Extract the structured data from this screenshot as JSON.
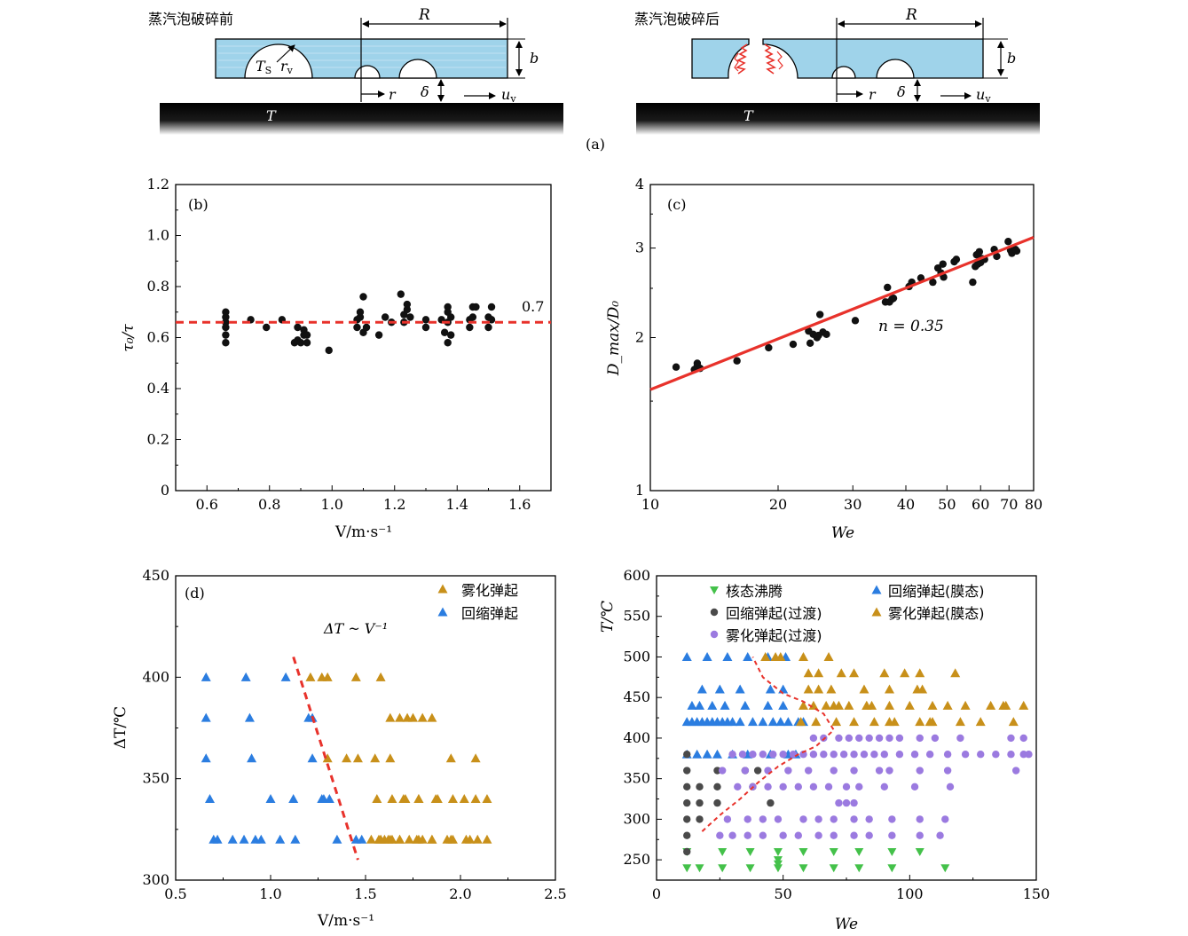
{
  "colors": {
    "water": "#9fd3ea",
    "edge": "#000000",
    "red": "#e8322b",
    "black": "#111111",
    "blue": "#2b7de0",
    "gold": "#c8901a",
    "green": "#44c14a",
    "gray": "#4a4a4a",
    "purple": "#9b7ae0"
  },
  "panel_a": {
    "label": "(a)",
    "left": {
      "title": "蒸汽泡破碎前",
      "R": "R",
      "b": "b",
      "Ts": "T",
      "Ts_sub": "S",
      "rv": "r",
      "rv_sub": "v",
      "r": "r",
      "delta": "δ",
      "uv": "u",
      "uv_sub": "v",
      "T": "T"
    },
    "right": {
      "title": "蒸汽泡破碎后",
      "R": "R",
      "b": "b",
      "r": "r",
      "delta": "δ",
      "uv": "u",
      "uv_sub": "v",
      "T": "T"
    }
  },
  "chart_data": [
    {
      "id": "b",
      "type": "scatter",
      "panel_label": "(b)",
      "xlabel": "V/m·s⁻¹",
      "ylabel": "τ₀/τ",
      "xlim": [
        0.5,
        1.7
      ],
      "ylim": [
        0,
        1.2
      ],
      "xticks": [
        0.6,
        0.8,
        1.0,
        1.2,
        1.4,
        1.6
      ],
      "yticks": [
        0,
        0.2,
        0.4,
        0.6,
        0.8,
        1.0,
        1.2
      ],
      "reference_line": {
        "y": 0.66,
        "label": "0.7",
        "style": "dashed-red"
      },
      "series": [
        {
          "name": "data",
          "color": "#111111",
          "marker": "circle",
          "x": [
            0.66,
            0.66,
            0.66,
            0.66,
            0.66,
            0.66,
            0.74,
            0.79,
            0.84,
            0.88,
            0.89,
            0.89,
            0.9,
            0.91,
            0.91,
            0.92,
            0.92,
            0.99,
            1.08,
            1.08,
            1.09,
            1.09,
            1.1,
            1.1,
            1.11,
            1.15,
            1.17,
            1.19,
            1.22,
            1.23,
            1.23,
            1.24,
            1.24,
            1.25,
            1.3,
            1.3,
            1.35,
            1.36,
            1.37,
            1.37,
            1.37,
            1.37,
            1.38,
            1.38,
            1.44,
            1.44,
            1.45,
            1.45,
            1.46,
            1.5,
            1.5,
            1.51,
            1.51
          ],
          "y": [
            0.58,
            0.61,
            0.64,
            0.66,
            0.68,
            0.7,
            0.67,
            0.64,
            0.67,
            0.58,
            0.59,
            0.64,
            0.58,
            0.61,
            0.63,
            0.58,
            0.61,
            0.55,
            0.64,
            0.67,
            0.68,
            0.7,
            0.62,
            0.76,
            0.64,
            0.61,
            0.68,
            0.66,
            0.77,
            0.66,
            0.69,
            0.71,
            0.73,
            0.68,
            0.64,
            0.67,
            0.67,
            0.62,
            0.58,
            0.66,
            0.7,
            0.72,
            0.68,
            0.61,
            0.64,
            0.67,
            0.68,
            0.72,
            0.72,
            0.64,
            0.68,
            0.67,
            0.72
          ]
        }
      ]
    },
    {
      "id": "c",
      "type": "scatter",
      "panel_label": "(c)",
      "scale": "log-log",
      "xlabel": "We",
      "ylabel": "D_max/D₀",
      "xlim": [
        10,
        80
      ],
      "ylim": [
        1,
        4
      ],
      "xticks": [
        10,
        20,
        30,
        40,
        50,
        60,
        70,
        80
      ],
      "yticks": [
        1,
        2,
        3,
        4
      ],
      "fit": {
        "label": "n = 0.35",
        "n": 0.35,
        "x_range": [
          10,
          80
        ],
        "y_range": [
          1.58,
          3.15
        ],
        "style": "solid-red"
      },
      "series": [
        {
          "name": "data",
          "color": "#111111",
          "marker": "circle",
          "x": [
            11.5,
            12.7,
            12.9,
            12.9,
            13.1,
            16.0,
            19.0,
            21.7,
            23.6,
            23.8,
            24.2,
            24.7,
            24.9,
            25.1,
            25.5,
            26.0,
            30.4,
            35.8,
            36.2,
            36.6,
            37.1,
            37.4,
            40.7,
            41.3,
            43.4,
            46.3,
            47.6,
            48.4,
            48.9,
            49.1,
            52.0,
            52.6,
            57.5,
            58.3,
            58.7,
            59.1,
            59.6,
            60.0,
            60.4,
            61.3,
            64.6,
            65.5,
            69.7,
            70.6,
            71.1,
            72.5,
            73.0
          ],
          "y": [
            1.75,
            1.73,
            1.78,
            1.76,
            1.74,
            1.8,
            1.91,
            1.94,
            2.06,
            1.95,
            2.03,
            2.0,
            2.02,
            2.22,
            2.05,
            2.03,
            2.16,
            2.35,
            2.51,
            2.35,
            2.38,
            2.39,
            2.52,
            2.57,
            2.62,
            2.57,
            2.74,
            2.68,
            2.79,
            2.63,
            2.82,
            2.85,
            2.57,
            2.76,
            2.91,
            2.79,
            2.95,
            2.81,
            2.86,
            2.85,
            2.98,
            2.89,
            3.09,
            2.97,
            2.93,
            2.98,
            2.96
          ]
        }
      ]
    },
    {
      "id": "d",
      "type": "scatter",
      "panel_label": "(d)",
      "xlabel": "V/m·s⁻¹",
      "ylabel": "ΔT/℃",
      "xlim": [
        0.5,
        2.5
      ],
      "ylim": [
        300,
        450
      ],
      "xticks": [
        0.5,
        1.0,
        1.5,
        2.0,
        2.5
      ],
      "yticks": [
        300,
        350,
        400,
        450
      ],
      "annotation": "ΔT ~ V⁻¹",
      "trend": {
        "x": [
          1.12,
          1.46
        ],
        "y": [
          410,
          310
        ],
        "style": "dashed-red"
      },
      "series": [
        {
          "name": "雾化弹起",
          "color": "#c8901a",
          "marker": "triangle",
          "x": [
            1.21,
            1.27,
            1.3,
            1.45,
            1.58,
            1.63,
            1.68,
            1.72,
            1.75,
            1.8,
            1.85,
            1.95,
            2.08,
            1.3,
            1.4,
            1.46,
            1.55,
            1.63,
            1.7,
            1.78,
            1.87,
            1.56,
            1.64,
            1.71,
            1.78,
            1.88,
            1.96,
            2.02,
            2.08,
            2.14,
            1.6,
            1.64,
            1.77,
            1.85,
            1.96,
            2.03,
            2.09,
            1.53,
            1.58,
            1.63,
            1.68,
            1.73,
            1.78,
            1.85,
            1.93,
            2.05,
            2.14,
            1.68,
            1.8,
            1.95,
            1.57,
            1.58,
            1.62
          ],
          "y": [
            400,
            400,
            400,
            400,
            400,
            380,
            380,
            380,
            380,
            380,
            380,
            360,
            360,
            360,
            360,
            360,
            360,
            360,
            340,
            340,
            340,
            340,
            340,
            340,
            340,
            340,
            340,
            340,
            340,
            340,
            320,
            320,
            320,
            320,
            320,
            320,
            320,
            320,
            320,
            320,
            320,
            320,
            320,
            320,
            320,
            320,
            320,
            320,
            320,
            320,
            320,
            320,
            320
          ]
        },
        {
          "name": "回缩弹起",
          "color": "#2b7de0",
          "marker": "triangle",
          "x": [
            0.66,
            0.66,
            0.66,
            0.68,
            0.7,
            0.72,
            0.8,
            0.86,
            0.92,
            0.95,
            0.87,
            0.89,
            0.9,
            1.0,
            1.05,
            1.12,
            1.22,
            1.22,
            1.28,
            1.31,
            1.35,
            1.45,
            1.48,
            1.08,
            1.13,
            1.2,
            1.27
          ],
          "y": [
            400,
            380,
            360,
            340,
            320,
            320,
            320,
            320,
            320,
            320,
            400,
            380,
            360,
            340,
            320,
            340,
            380,
            360,
            340,
            340,
            320,
            320,
            320,
            400,
            320,
            380,
            340
          ]
        }
      ]
    },
    {
      "id": "e",
      "type": "scatter",
      "panel_label": "",
      "xlabel": "We",
      "ylabel": "T/℃",
      "xlim": [
        0,
        150
      ],
      "ylim": [
        225,
        600
      ],
      "xticks": [
        0,
        50,
        100,
        150
      ],
      "yticks": [
        250,
        300,
        350,
        400,
        450,
        500,
        550,
        600
      ],
      "boundary": {
        "x": [
          18,
          25,
          33,
          40,
          48,
          56,
          63,
          70,
          66,
          58,
          50,
          42,
          38
        ],
        "y": [
          285,
          305,
          325,
          345,
          365,
          380,
          390,
          410,
          430,
          445,
          455,
          475,
          500
        ],
        "style": "dashed-red"
      },
      "series": [
        {
          "name": "核态沸腾",
          "color": "#44c14a",
          "marker": "triangle-down",
          "x": [
            12,
            12,
            17,
            26,
            26,
            37,
            37,
            48,
            48,
            48,
            48,
            58,
            58,
            70,
            70,
            80,
            80,
            93,
            93,
            104,
            114
          ],
          "y": [
            260,
            240,
            240,
            260,
            240,
            260,
            240,
            260,
            250,
            245,
            240,
            260,
            240,
            260,
            240,
            260,
            240,
            260,
            240,
            260,
            240
          ]
        },
        {
          "name": "回缩弹起(膜态)",
          "color": "#2b7de0",
          "marker": "triangle",
          "x": [
            12,
            14,
            16,
            18,
            20,
            22,
            24,
            26,
            28,
            30,
            33,
            38,
            42,
            46,
            49,
            52,
            56,
            58,
            12,
            16,
            20,
            24,
            30,
            36,
            45,
            52,
            55,
            14,
            17,
            22,
            27,
            35,
            44,
            50,
            12,
            20,
            28,
            36,
            44,
            51,
            18,
            25,
            33,
            45,
            50
          ],
          "y": [
            420,
            420,
            420,
            420,
            420,
            420,
            420,
            420,
            420,
            420,
            420,
            420,
            420,
            420,
            420,
            420,
            420,
            420,
            380,
            380,
            380,
            380,
            380,
            380,
            380,
            380,
            380,
            440,
            440,
            440,
            440,
            440,
            440,
            440,
            500,
            500,
            500,
            500,
            500,
            500,
            460,
            460,
            460,
            460,
            460
          ]
        },
        {
          "name": "回缩弹起(过渡)",
          "color": "#4a4a4a",
          "marker": "circle",
          "x": [
            12,
            12,
            12,
            12,
            12,
            17,
            17,
            17,
            24,
            24,
            24,
            12,
            12,
            35,
            38,
            40,
            45
          ],
          "y": [
            360,
            340,
            320,
            300,
            280,
            340,
            320,
            300,
            360,
            340,
            320,
            380,
            260,
            360,
            340,
            360,
            320
          ]
        },
        {
          "name": "雾化弹起(膜态)",
          "color": "#c8901a",
          "marker": "triangle",
          "x": [
            43,
            47,
            49,
            58,
            68,
            60,
            64,
            73,
            78,
            90,
            98,
            104,
            118,
            132,
            138,
            145,
            62,
            67,
            72,
            76,
            83,
            85,
            92,
            100,
            109,
            115,
            122,
            137,
            57,
            63,
            71,
            78,
            86,
            94,
            104,
            109,
            120,
            128,
            141,
            60,
            64,
            69,
            82,
            92,
            103,
            105,
            58,
            70,
            83,
            92,
            108
          ],
          "y": [
            500,
            500,
            500,
            500,
            500,
            480,
            480,
            480,
            480,
            480,
            480,
            480,
            480,
            440,
            440,
            440,
            440,
            440,
            440,
            440,
            440,
            440,
            440,
            440,
            440,
            440,
            440,
            440,
            420,
            420,
            420,
            420,
            420,
            420,
            420,
            420,
            420,
            420,
            420,
            460,
            460,
            460,
            460,
            460,
            460,
            460,
            440,
            440,
            440,
            420,
            420
          ]
        },
        {
          "name": "雾化弹起(过渡)",
          "color": "#9b7ae0",
          "marker": "circle",
          "x": [
            30,
            34,
            38,
            42,
            46,
            50,
            54,
            58,
            62,
            66,
            70,
            74,
            78,
            82,
            86,
            90,
            96,
            102,
            108,
            115,
            122,
            128,
            134,
            140,
            145,
            147,
            62,
            66,
            72,
            76,
            80,
            84,
            88,
            92,
            96,
            104,
            110,
            120,
            140,
            145,
            26,
            35,
            44,
            52,
            60,
            70,
            78,
            88,
            92,
            104,
            115,
            142,
            32,
            38,
            44,
            50,
            56,
            62,
            68,
            75,
            80,
            90,
            102,
            116,
            28,
            36,
            42,
            48,
            58,
            64,
            70,
            78,
            84,
            93,
            104,
            114,
            25,
            30,
            36,
            42,
            50,
            56,
            64,
            70,
            78,
            84,
            93,
            104,
            112,
            72,
            75,
            78
          ],
          "y": [
            380,
            380,
            380,
            380,
            380,
            380,
            380,
            380,
            380,
            380,
            380,
            380,
            380,
            380,
            380,
            380,
            380,
            380,
            380,
            380,
            380,
            380,
            380,
            380,
            380,
            380,
            400,
            400,
            400,
            400,
            400,
            400,
            400,
            400,
            400,
            400,
            400,
            400,
            400,
            400,
            360,
            360,
            360,
            360,
            360,
            360,
            360,
            360,
            360,
            360,
            360,
            360,
            340,
            340,
            340,
            340,
            340,
            340,
            340,
            340,
            340,
            340,
            340,
            340,
            300,
            300,
            300,
            300,
            300,
            300,
            300,
            300,
            300,
            300,
            300,
            300,
            280,
            280,
            280,
            280,
            280,
            280,
            280,
            280,
            280,
            280,
            280,
            280,
            280,
            320,
            320,
            320
          ]
        }
      ]
    }
  ]
}
